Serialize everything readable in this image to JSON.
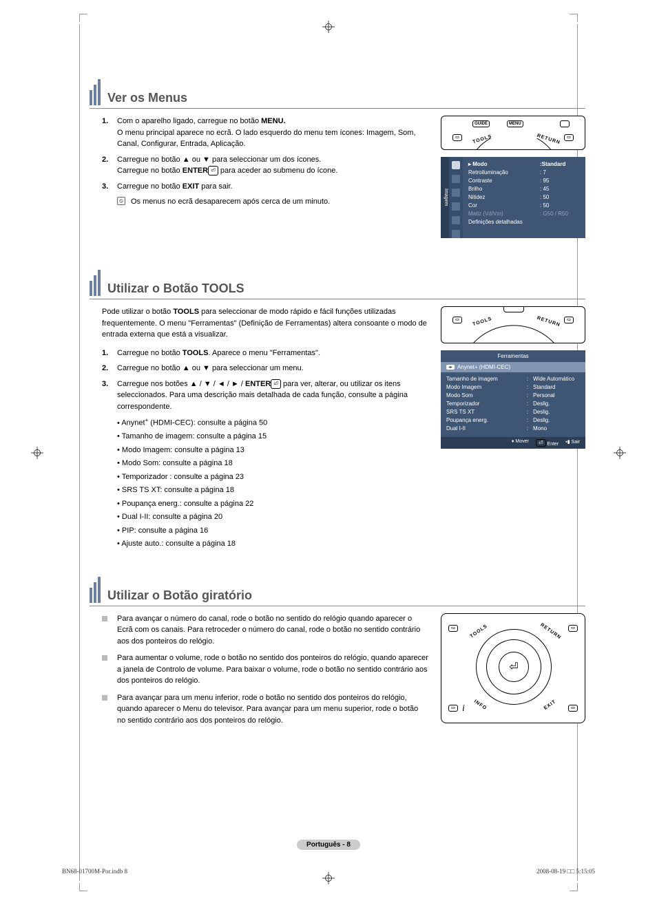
{
  "section1": {
    "title": "Ver os Menus",
    "steps": [
      {
        "n": "1.",
        "html": "Com o aparelho ligado, carregue no botão <b>MENU.</b><br>O menu principal aparece no ecrã. O lado esquerdo do menu tem ícones: Imagem, Som, Canal, Configurar, Entrada, Aplicação."
      },
      {
        "n": "2.",
        "html": "Carregue no botão ▲ ou ▼ para seleccionar um dos ícones.<br>Carregue no botão <b>ENTER</b><span class='enter-glyph'>⏎</span> para aceder ao submenu do ícone."
      },
      {
        "n": "3.",
        "html": "Carregue no botão <b>EXIT</b> para sair."
      }
    ],
    "note": "Os menus no ecrã desaparecem após cerca de um minuto.",
    "remote": {
      "guide": "GUIDE",
      "menu": "MENU",
      "tools": "TOOLS",
      "return": "RETURN"
    },
    "osd": {
      "tab": "Imagem",
      "rows": [
        {
          "k": "▸ Modo",
          "v": ":Standard",
          "head": true
        },
        {
          "k": "Retroiluminação",
          "v": ": 7"
        },
        {
          "k": "Contraste",
          "v": ": 95"
        },
        {
          "k": "Brilho",
          "v": ": 45"
        },
        {
          "k": "Nitidez",
          "v": ": 50"
        },
        {
          "k": "Cor",
          "v": ": 50"
        },
        {
          "k": "Matiz (Vd/Vm)",
          "v": ": G50 / R50",
          "dim": true
        },
        {
          "k": "Definições detalhadas",
          "v": ""
        }
      ]
    }
  },
  "section2": {
    "title": "Utilizar o Botão TOOLS",
    "para": "Pode utilizar o botão <b>TOOLS</b> para seleccionar de modo rápido e fácil funções utilizadas frequentemente. O menu \"Ferramentas\" (Definição de Ferramentas) altera consoante o modo de entrada externa que está a visualizar.",
    "steps": [
      {
        "n": "1.",
        "html": "Carregue no botão <b>TOOLS</b>. Aparece o menu \"Ferramentas\"."
      },
      {
        "n": "2.",
        "html": "Carregue no botão ▲ ou ▼ para seleccionar um menu."
      },
      {
        "n": "3.",
        "html": "Carregue nos botões ▲ / ▼ / ◄ / ► / <b>ENTER</b><span class='enter-glyph'>⏎</span> para ver, alterar, ou utilizar os itens seleccionados. Para uma descrição mais detalhada de cada função, consulte a página correspondente."
      }
    ],
    "refs": [
      "Anynet<span class='plus-sup'>+</span> (HDMI-CEC): consulte a página 50",
      "Tamanho de imagem: consulte a página 15",
      "Modo Imagem: consulte a página 13",
      "Modo Som: consulte a página 18",
      "Temporizador : consulte a página 23",
      "SRS TS XT: consulte a página 18",
      "Poupança energ.: consulte a página 22",
      "Dual I-II: consulte a página 20",
      "PIP: consulte a página 16",
      "Ajuste auto.: consulte a página 18"
    ],
    "tools": {
      "title": "Ferramentas",
      "selected": "Anynet+ (HDMI-CEC)",
      "rows": [
        {
          "k": "Tamanho de imagem",
          "v": "Wide Automático"
        },
        {
          "k": "Modo Imagem",
          "v": "Standard"
        },
        {
          "k": "Modo Som",
          "v": "Personal"
        },
        {
          "k": "Temporizador",
          "v": "Deslig."
        },
        {
          "k": "SRS TS XT",
          "v": "Deslig."
        },
        {
          "k": "Poupança energ.",
          "v": "Deslig."
        },
        {
          "k": "Dual I-II",
          "v": "Mono"
        }
      ],
      "footer": {
        "move": "Mover",
        "enter": "Enter",
        "exit": "Sair"
      }
    }
  },
  "section3": {
    "title": "Utilizar o Botão giratório",
    "bullets": [
      "Para avançar o número do canal, rode o botão no sentido do relógio quando aparecer o Ecrã com os canais. Para retroceder o número do canal, rode o botão no sentido contrário aos dos ponteiros do relógio.",
      "Para aumentar o volume, rode o botão no sentido dos ponteiros do relógio, quando aparecer a janela de Controlo de volume. Para baixar o volume, rode o botão no sentido contrário aos dos ponteiros do relógio.",
      "Para avançar para um menu inferior, rode o botão no sentido dos ponteiros do relógio, quando aparecer o Menu do televisor. Para avançar para um menu superior, rode o botão no sentido contrário aos dos ponteiros do relógio."
    ],
    "remote": {
      "tools": "TOOLS",
      "return": "RETURN",
      "info": "INFO",
      "exit": "EXIT"
    }
  },
  "pageBadge": "Português - 8",
  "footerLeft": "BN68-01700M-Por.indb   8",
  "footerRight": "2008-08-19   □□ 5:15:05"
}
